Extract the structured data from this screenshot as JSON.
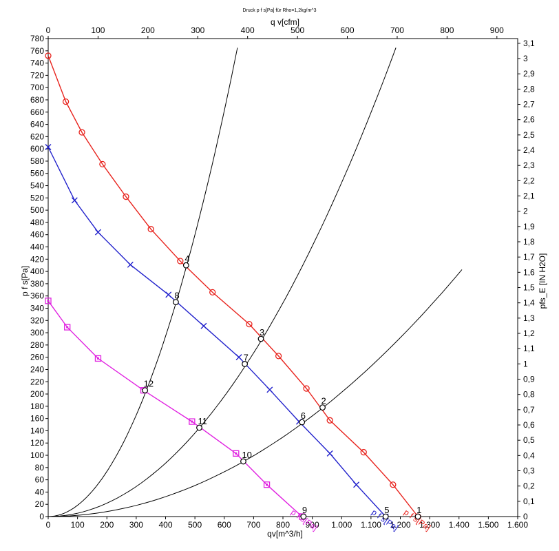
{
  "chart_data": {
    "type": "line",
    "title": "Druck p f s[Pa] für Rho=1,2kg/m^3",
    "xlabel_bottom": "qv[m^3/h]",
    "xlabel_top": "q v[cfm]",
    "ylabel_left": "p f s[Pa]",
    "ylabel_right": "pfs_E [IN H2O]",
    "xlim": [
      0,
      1600
    ],
    "ylim": [
      0,
      780
    ],
    "x_top_lim": [
      0,
      941.7
    ],
    "y_right_lim": [
      0,
      3.131
    ],
    "x_ticks": [
      {
        "v": 0,
        "t": "0"
      },
      {
        "v": 100,
        "t": "100"
      },
      {
        "v": 200,
        "t": "200"
      },
      {
        "v": 300,
        "t": "300"
      },
      {
        "v": 400,
        "t": "400"
      },
      {
        "v": 500,
        "t": "500"
      },
      {
        "v": 600,
        "t": "600"
      },
      {
        "v": 700,
        "t": "700"
      },
      {
        "v": 800,
        "t": "800"
      },
      {
        "v": 900,
        "t": "900"
      },
      {
        "v": 1000,
        "t": "1.000"
      },
      {
        "v": 1100,
        "t": "1.100"
      },
      {
        "v": 1200,
        "t": "1.200"
      },
      {
        "v": 1300,
        "t": "1.300"
      },
      {
        "v": 1400,
        "t": "1.400"
      },
      {
        "v": 1500,
        "t": "1.500"
      },
      {
        "v": 1600,
        "t": "1.600"
      }
    ],
    "x_top_ticks": [
      "0",
      "100",
      "200",
      "300",
      "400",
      "500",
      "600",
      "700",
      "800",
      "900"
    ],
    "y_ticks": [
      0,
      20,
      40,
      60,
      80,
      100,
      120,
      140,
      160,
      180,
      200,
      220,
      240,
      260,
      280,
      300,
      320,
      340,
      360,
      380,
      400,
      420,
      440,
      460,
      480,
      500,
      520,
      540,
      560,
      580,
      600,
      620,
      640,
      660,
      680,
      700,
      720,
      740,
      760,
      780
    ],
    "y_right_ticks": [
      "0",
      "0,1",
      "0,2",
      "0,3",
      "0,4",
      "0,5",
      "0,6",
      "0,7",
      "0,8",
      "0,9",
      "1",
      "1,1",
      "1,2",
      "1,3",
      "1,4",
      "1,5",
      "1,6",
      "1,7",
      "1,8",
      "1,9",
      "2",
      "2,1",
      "2,2",
      "2,3",
      "2,4",
      "2,5",
      "2,6",
      "2,7",
      "2,8",
      "2,9",
      "3",
      "3,1"
    ],
    "series": [
      {
        "label": "p f s[Pa]",
        "color": "#e8221c",
        "marker": "circle",
        "x": [
          0,
          60,
          115,
          185,
          265,
          350,
          450,
          560,
          685,
          785,
          880,
          960,
          1075,
          1175,
          1260
        ],
        "y": [
          752,
          677,
          627,
          575,
          522,
          469,
          417,
          366,
          314,
          262,
          209,
          157,
          105,
          52,
          0
        ],
        "label_x": 1210,
        "label_y": 5
      },
      {
        "label": "p f s[Pa]",
        "color": "#2222cc",
        "marker": "x",
        "x": [
          0,
          90,
          170,
          280,
          410,
          530,
          650,
          755,
          855,
          960,
          1050,
          1150
        ],
        "y": [
          603,
          516,
          464,
          411,
          362,
          311,
          260,
          207,
          155,
          103,
          52,
          0
        ],
        "label_x": 1100,
        "label_y": 5
      },
      {
        "label": "p f s[Pa]",
        "color": "#e020e0",
        "marker": "square",
        "x": [
          0,
          65,
          170,
          325,
          490,
          640,
          745,
          865
        ],
        "y": [
          352,
          309,
          258,
          206,
          155,
          103,
          52,
          0
        ],
        "label_x": 825,
        "label_y": 5
      }
    ],
    "system_curves": [
      {
        "x_end": 645,
        "y_end": 765
      },
      {
        "x_end": 1185,
        "y_end": 765
      },
      {
        "x_end": 1410,
        "y_end": 403
      }
    ],
    "operating_points": [
      {
        "id": "1",
        "x": 1260,
        "y": 0
      },
      {
        "id": "2",
        "x": 935,
        "y": 178
      },
      {
        "id": "3",
        "x": 725,
        "y": 290
      },
      {
        "id": "4",
        "x": 470,
        "y": 410
      },
      {
        "id": "5",
        "x": 1150,
        "y": 0
      },
      {
        "id": "6",
        "x": 865,
        "y": 154
      },
      {
        "id": "7",
        "x": 670,
        "y": 249
      },
      {
        "id": "8",
        "x": 435,
        "y": 350
      },
      {
        "id": "9",
        "x": 870,
        "y": 0
      },
      {
        "id": "10",
        "x": 665,
        "y": 90
      },
      {
        "id": "11",
        "x": 515,
        "y": 145
      },
      {
        "id": "12",
        "x": 330,
        "y": 206
      }
    ]
  }
}
